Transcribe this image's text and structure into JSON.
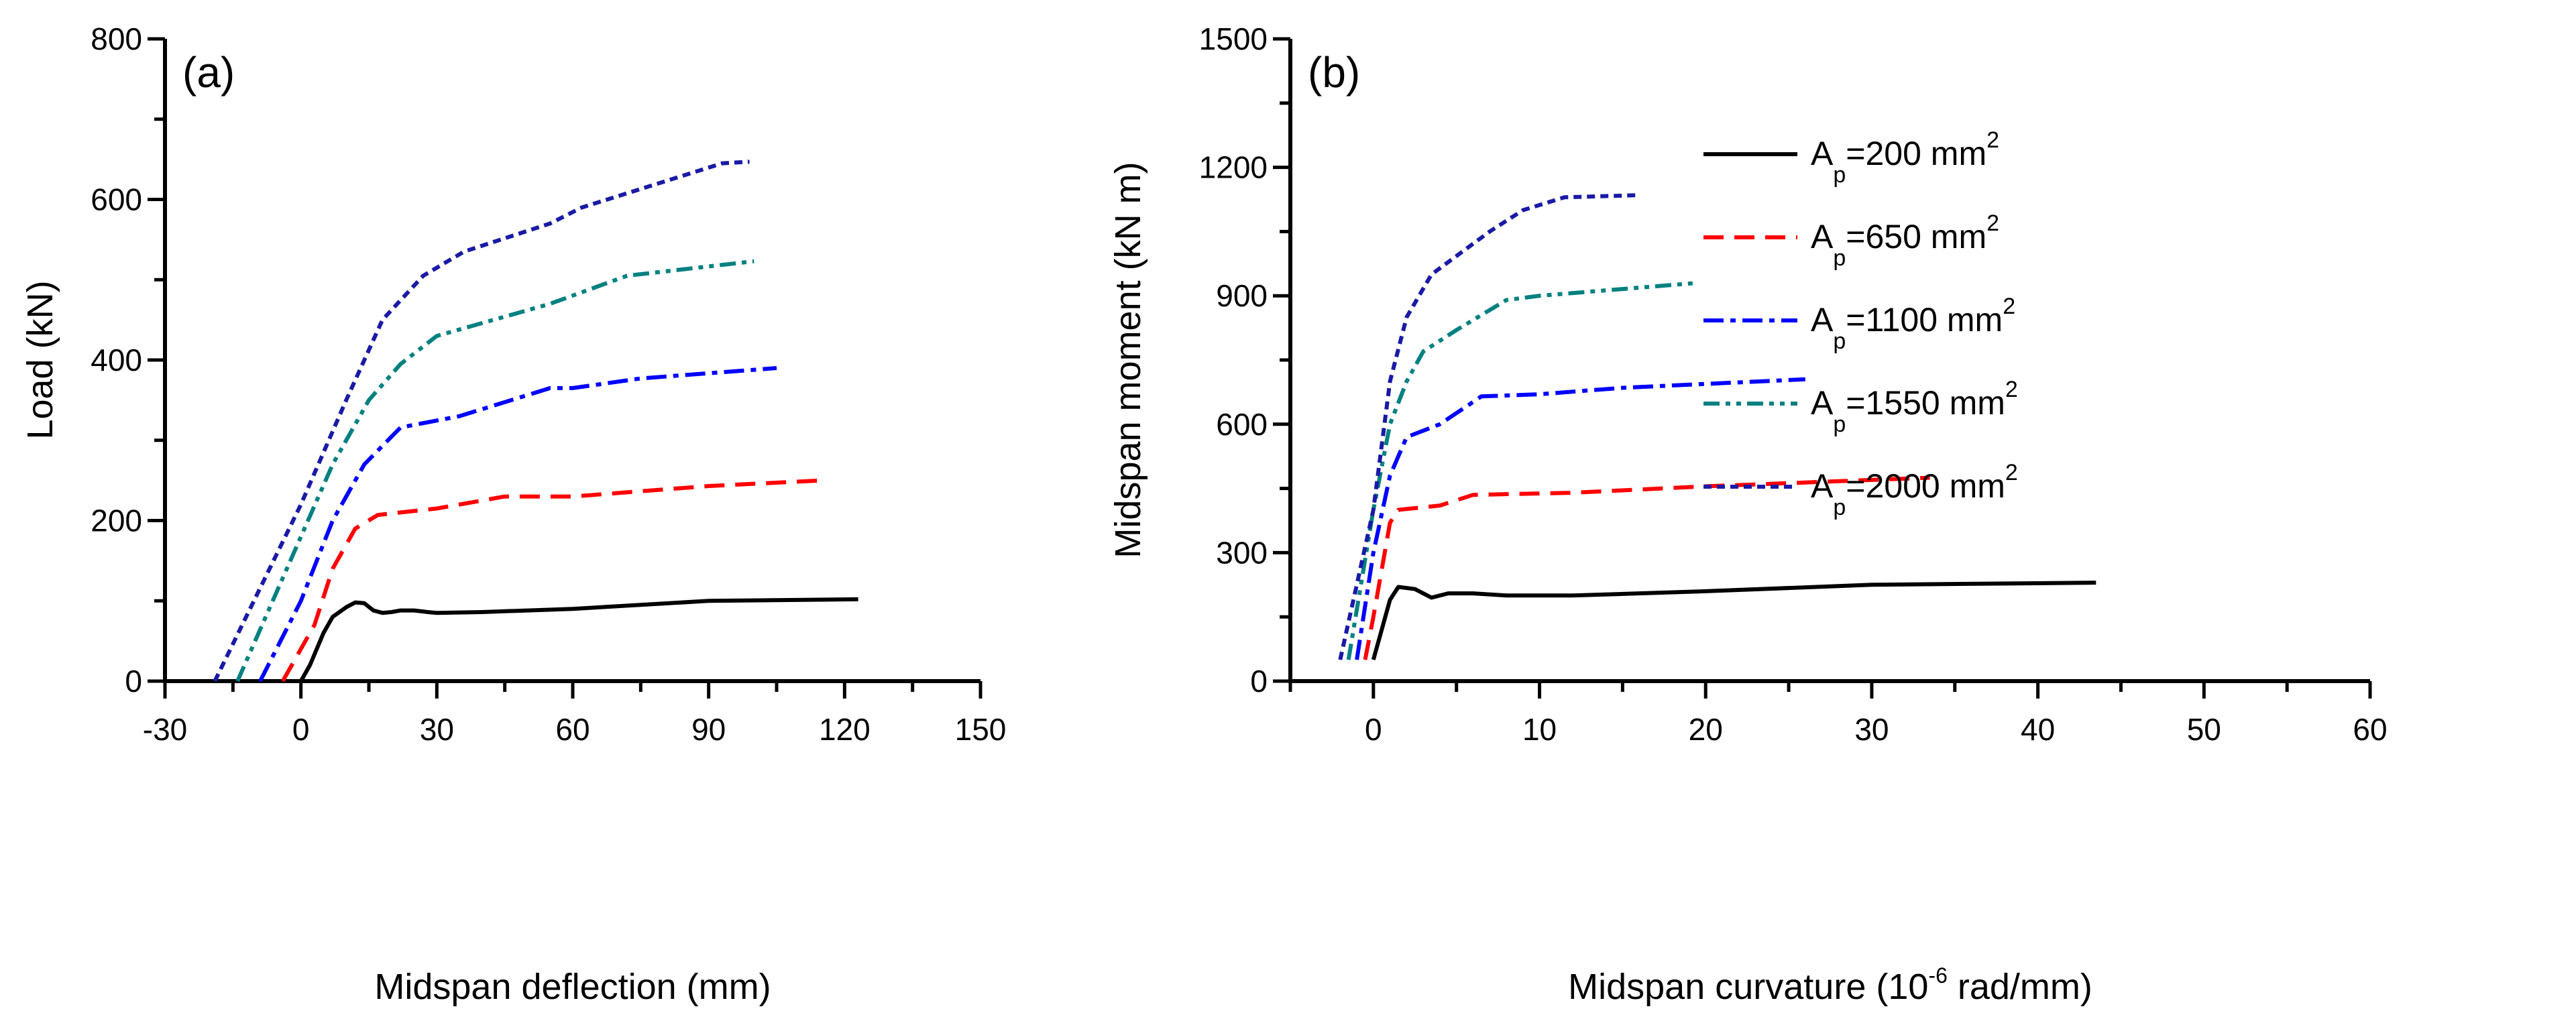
{
  "chart_data": [
    {
      "type": "line",
      "panel_label": "(a)",
      "xlabel": "Midspan deflection (mm)",
      "ylabel": "Load (kN)",
      "xlim": [
        -30,
        150
      ],
      "ylim": [
        0,
        800
      ],
      "xticks": [
        -30,
        0,
        30,
        60,
        90,
        120,
        150
      ],
      "yticks": [
        0,
        200,
        400,
        600,
        800
      ],
      "x_minor_step": 15,
      "y_minor_step": 100,
      "grid": false,
      "series": [
        {
          "name": "Ap=200 mm2",
          "color": "#000000",
          "style": "solid",
          "points": [
            [
              0,
              0
            ],
            [
              2,
              20
            ],
            [
              5,
              60
            ],
            [
              7,
              80
            ],
            [
              10,
              92
            ],
            [
              12,
              98
            ],
            [
              14,
              97
            ],
            [
              16,
              88
            ],
            [
              18,
              85
            ],
            [
              20,
              86
            ],
            [
              22,
              88
            ],
            [
              25,
              88
            ],
            [
              28,
              86
            ],
            [
              30,
              85
            ],
            [
              40,
              86
            ],
            [
              60,
              90
            ],
            [
              90,
              100
            ],
            [
              123,
              102
            ]
          ]
        },
        {
          "name": "Ap=650 mm2",
          "color": "#ff0000",
          "style": "dash",
          "points": [
            [
              -4,
              0
            ],
            [
              3,
              70
            ],
            [
              7,
              140
            ],
            [
              12,
              190
            ],
            [
              17,
              207
            ],
            [
              30,
              215
            ],
            [
              45,
              230
            ],
            [
              60,
              230
            ],
            [
              90,
              243
            ],
            [
              115,
              250
            ]
          ]
        },
        {
          "name": "Ap=1100 mm2",
          "color": "#0000ff",
          "style": "dashdot",
          "points": [
            [
              -9,
              0
            ],
            [
              0,
              100
            ],
            [
              7,
              200
            ],
            [
              14,
              270
            ],
            [
              22,
              316
            ],
            [
              35,
              330
            ],
            [
              55,
              365
            ],
            [
              60,
              365
            ],
            [
              75,
              377
            ],
            [
              105,
              390
            ]
          ]
        },
        {
          "name": "Ap=1550 mm2",
          "color": "#008080",
          "style": "dashdotdot",
          "points": [
            [
              -14,
              0
            ],
            [
              0,
              180
            ],
            [
              7,
              270
            ],
            [
              15,
              350
            ],
            [
              22,
              395
            ],
            [
              30,
              430
            ],
            [
              55,
              470
            ],
            [
              72,
              505
            ],
            [
              100,
              523
            ]
          ]
        },
        {
          "name": "Ap=2000 mm2",
          "color": "#1a1aa6",
          "style": "shortdash",
          "points": [
            [
              -19,
              0
            ],
            [
              0,
              220
            ],
            [
              10,
              350
            ],
            [
              18,
              450
            ],
            [
              27,
              505
            ],
            [
              36,
              535
            ],
            [
              55,
              570
            ],
            [
              62,
              590
            ],
            [
              93,
              645
            ],
            [
              99,
              647
            ]
          ]
        }
      ]
    },
    {
      "type": "line",
      "panel_label": "(b)",
      "xlabel_main": "Midspan curvature (10",
      "xlabel_sup": "-6",
      "xlabel_tail": " rad/mm)",
      "ylabel": "Midspan moment (kN m)",
      "xlim": [
        -5,
        60
      ],
      "ylim": [
        0,
        1500
      ],
      "xticks": [
        0,
        10,
        20,
        30,
        40,
        50,
        60
      ],
      "yticks": [
        0,
        300,
        600,
        900,
        1200,
        1500
      ],
      "x_minor_step": 5,
      "y_minor_step": 150,
      "grid": false,
      "legend_position": "top-right",
      "legend": [
        {
          "prefix": "A",
          "sub": "p",
          "text": "=200 mm",
          "sup": "2"
        },
        {
          "prefix": "A",
          "sub": "p",
          "text": "=650 mm",
          "sup": "2"
        },
        {
          "prefix": "A",
          "sub": "p",
          "text": "=1100 mm",
          "sup": "2"
        },
        {
          "prefix": "A",
          "sub": "p",
          "text": "=1550 mm",
          "sup": "2"
        },
        {
          "prefix": "A",
          "sub": "p",
          "text": "=2000 mm",
          "sup": "2"
        }
      ],
      "series": [
        {
          "name": "Ap=200 mm2",
          "color": "#000000",
          "style": "solid",
          "points": [
            [
              0,
              50
            ],
            [
              0.5,
              120
            ],
            [
              1,
              190
            ],
            [
              1.5,
              220
            ],
            [
              2.5,
              215
            ],
            [
              3.5,
              195
            ],
            [
              4.5,
              205
            ],
            [
              6,
              205
            ],
            [
              8,
              200
            ],
            [
              12,
              200
            ],
            [
              20,
              210
            ],
            [
              30,
              225
            ],
            [
              43.5,
              230
            ]
          ]
        },
        {
          "name": "Ap=650 mm2",
          "color": "#ff0000",
          "style": "dash",
          "points": [
            [
              -0.5,
              50
            ],
            [
              0,
              150
            ],
            [
              1,
              370
            ],
            [
              1.5,
              400
            ],
            [
              4,
              410
            ],
            [
              6,
              435
            ],
            [
              12,
              440
            ],
            [
              20,
              455
            ],
            [
              33.5,
              475
            ]
          ]
        },
        {
          "name": "Ap=1100 mm2",
          "color": "#0000ff",
          "style": "dashdot",
          "points": [
            [
              -1,
              50
            ],
            [
              0,
              300
            ],
            [
              1,
              480
            ],
            [
              2,
              570
            ],
            [
              4,
              600
            ],
            [
              6.5,
              665
            ],
            [
              10,
              670
            ],
            [
              15,
              685
            ],
            [
              26,
              705
            ]
          ]
        },
        {
          "name": "Ap=1550 mm2",
          "color": "#008080",
          "style": "dashdotdot",
          "points": [
            [
              -1.5,
              50
            ],
            [
              0,
              400
            ],
            [
              1,
              600
            ],
            [
              2,
              700
            ],
            [
              3,
              770
            ],
            [
              5,
              820
            ],
            [
              8,
              890
            ],
            [
              10,
              900
            ],
            [
              19.5,
              930
            ]
          ]
        },
        {
          "name": "Ap=2000 mm2",
          "color": "#1a1aa6",
          "style": "shortdash",
          "points": [
            [
              -2,
              50
            ],
            [
              0,
              400
            ],
            [
              1,
              700
            ],
            [
              2,
              850
            ],
            [
              3.5,
              950
            ],
            [
              7,
              1050
            ],
            [
              9,
              1100
            ],
            [
              11.5,
              1130
            ],
            [
              16,
              1135
            ]
          ]
        }
      ]
    }
  ]
}
